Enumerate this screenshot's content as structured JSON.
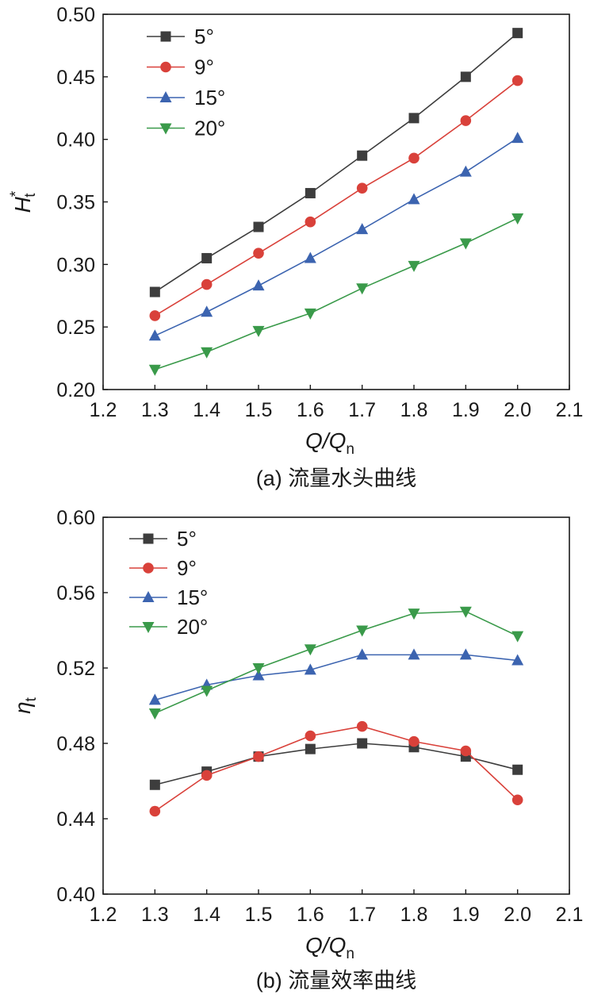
{
  "chart_data": [
    {
      "type": "line",
      "caption": "(a) 流量水头曲线",
      "xlabel": "Q/Q",
      "xlabel_sub": "n",
      "ylabel": "H",
      "ylabel_sup": "*",
      "ylabel_sub": "t",
      "xlim": [
        1.2,
        2.1
      ],
      "ylim": [
        0.2,
        0.5
      ],
      "xticks": [
        1.2,
        1.3,
        1.4,
        1.5,
        1.6,
        1.7,
        1.8,
        1.9,
        2.0,
        2.1
      ],
      "xtick_labels": [
        "1.2",
        "1.3",
        "1.4",
        "1.5",
        "1.6",
        "1.7",
        "1.8",
        "1.9",
        "2.0",
        "2.1"
      ],
      "yticks": [
        0.2,
        0.25,
        0.3,
        0.35,
        0.4,
        0.45,
        0.5
      ],
      "ytick_labels": [
        "0.20",
        "0.25",
        "0.30",
        "0.35",
        "0.40",
        "0.45",
        "0.50"
      ],
      "legend_position": "top-left",
      "x": [
        1.3,
        1.4,
        1.5,
        1.6,
        1.7,
        1.8,
        1.9,
        2.0
      ],
      "series": [
        {
          "name": "5°",
          "color": "#3d3d3d",
          "marker": "square",
          "values": [
            0.278,
            0.305,
            0.33,
            0.357,
            0.387,
            0.417,
            0.45,
            0.485
          ]
        },
        {
          "name": "9°",
          "color": "#d9413a",
          "marker": "circle",
          "values": [
            0.259,
            0.284,
            0.309,
            0.334,
            0.361,
            0.385,
            0.415,
            0.447
          ]
        },
        {
          "name": "15°",
          "color": "#3c64b0",
          "marker": "triangle-up",
          "values": [
            0.243,
            0.262,
            0.283,
            0.305,
            0.328,
            0.352,
            0.374,
            0.401
          ]
        },
        {
          "name": "20°",
          "color": "#3a9a4a",
          "marker": "triangle-down",
          "values": [
            0.216,
            0.23,
            0.247,
            0.261,
            0.281,
            0.299,
            0.317,
            0.337
          ]
        }
      ]
    },
    {
      "type": "line",
      "caption": "(b) 流量效率曲线",
      "xlabel": "Q/Q",
      "xlabel_sub": "n",
      "ylabel": "η",
      "ylabel_sup": "",
      "ylabel_sub": "t",
      "xlim": [
        1.2,
        2.1
      ],
      "ylim": [
        0.4,
        0.6
      ],
      "xticks": [
        1.2,
        1.3,
        1.4,
        1.5,
        1.6,
        1.7,
        1.8,
        1.9,
        2.0,
        2.1
      ],
      "xtick_labels": [
        "1.2",
        "1.3",
        "1.4",
        "1.5",
        "1.6",
        "1.7",
        "1.8",
        "1.9",
        "2.0",
        "2.1"
      ],
      "yticks": [
        0.4,
        0.44,
        0.48,
        0.52,
        0.56,
        0.6
      ],
      "ytick_labels": [
        "0.40",
        "0.44",
        "0.48",
        "0.52",
        "0.56",
        "0.60"
      ],
      "legend_position": "top-left",
      "x": [
        1.3,
        1.4,
        1.5,
        1.6,
        1.7,
        1.8,
        1.9,
        2.0
      ],
      "series": [
        {
          "name": "5°",
          "color": "#3d3d3d",
          "marker": "square",
          "values": [
            0.458,
            0.465,
            0.473,
            0.477,
            0.48,
            0.478,
            0.473,
            0.466
          ]
        },
        {
          "name": "9°",
          "color": "#d9413a",
          "marker": "circle",
          "values": [
            0.444,
            0.463,
            0.473,
            0.484,
            0.489,
            0.481,
            0.476,
            0.45
          ]
        },
        {
          "name": "15°",
          "color": "#3c64b0",
          "marker": "triangle-up",
          "values": [
            0.503,
            0.511,
            0.516,
            0.519,
            0.527,
            0.527,
            0.527,
            0.524
          ]
        },
        {
          "name": "20°",
          "color": "#3a9a4a",
          "marker": "triangle-down",
          "values": [
            0.496,
            0.508,
            0.52,
            0.53,
            0.54,
            0.549,
            0.55,
            0.537
          ]
        }
      ]
    }
  ]
}
